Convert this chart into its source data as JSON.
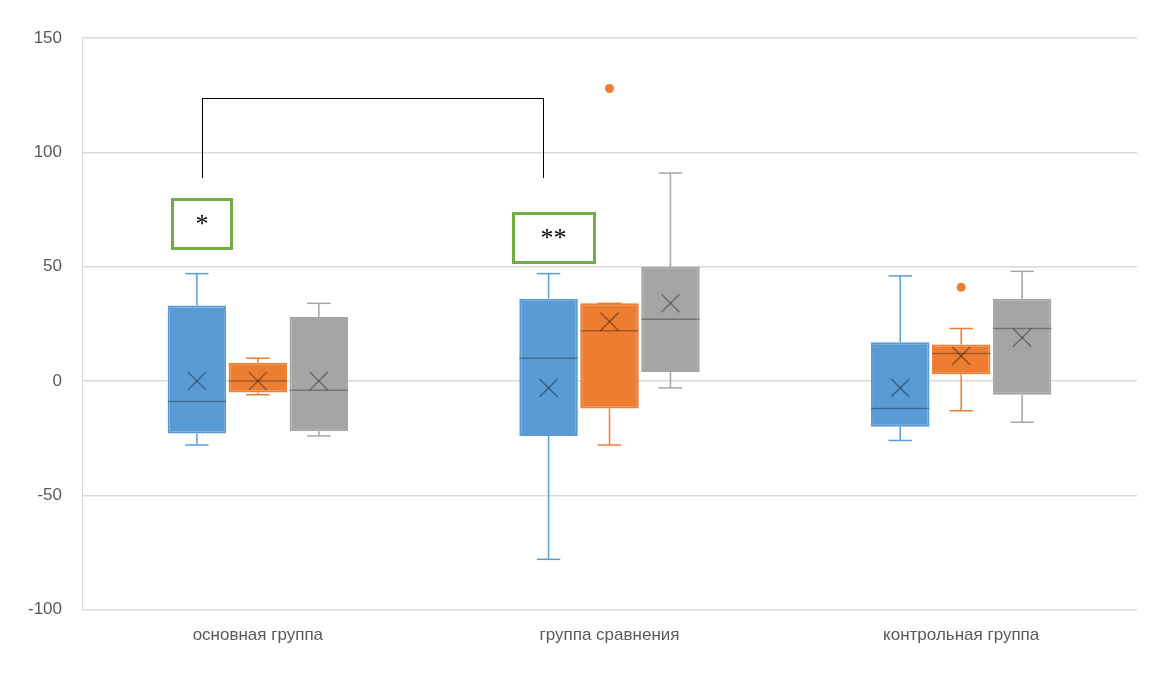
{
  "chart_data": {
    "type": "box",
    "categories": [
      "основная группа",
      "группа сравнения",
      "контрольная группа"
    ],
    "series": [
      {
        "color": "#5b9bd5",
        "boxes": [
          {
            "low": -28,
            "q1": -23,
            "median": -9,
            "q3": 33,
            "high": 47,
            "mean": 0
          },
          {
            "low": -78,
            "q1": -24,
            "median": 10,
            "q3": 36,
            "high": 47,
            "mean": -3
          },
          {
            "low": -26,
            "q1": -20,
            "median": -12,
            "q3": 17,
            "high": 46,
            "mean": -3
          }
        ]
      },
      {
        "color": "#ed7d31",
        "boxes": [
          {
            "low": -6,
            "q1": -5,
            "median": 0,
            "q3": 8,
            "high": 10,
            "mean": 0
          },
          {
            "low": -28,
            "q1": -12,
            "median": 22,
            "q3": 34,
            "high": 34,
            "mean": 26,
            "outliers": [
              128
            ]
          },
          {
            "low": -13,
            "q1": 3,
            "median": 12,
            "q3": 16,
            "high": 23,
            "mean": 11,
            "outliers": [
              41
            ]
          }
        ]
      },
      {
        "color": "#a5a5a5",
        "boxes": [
          {
            "low": -24,
            "q1": -22,
            "median": -4,
            "q3": 28,
            "high": 34,
            "mean": 0
          },
          {
            "low": -3,
            "q1": 4,
            "median": 27,
            "q3": 50,
            "high": 91,
            "mean": 34
          },
          {
            "low": -18,
            "q1": -6,
            "median": 23,
            "q3": 36,
            "high": 48,
            "mean": 19
          }
        ]
      }
    ],
    "ylim": [
      -100,
      150
    ],
    "yticks": [
      -100,
      -50,
      0,
      50,
      100,
      150
    ],
    "grid": "y",
    "legend": false,
    "annotations": [
      "*",
      "**"
    ]
  }
}
